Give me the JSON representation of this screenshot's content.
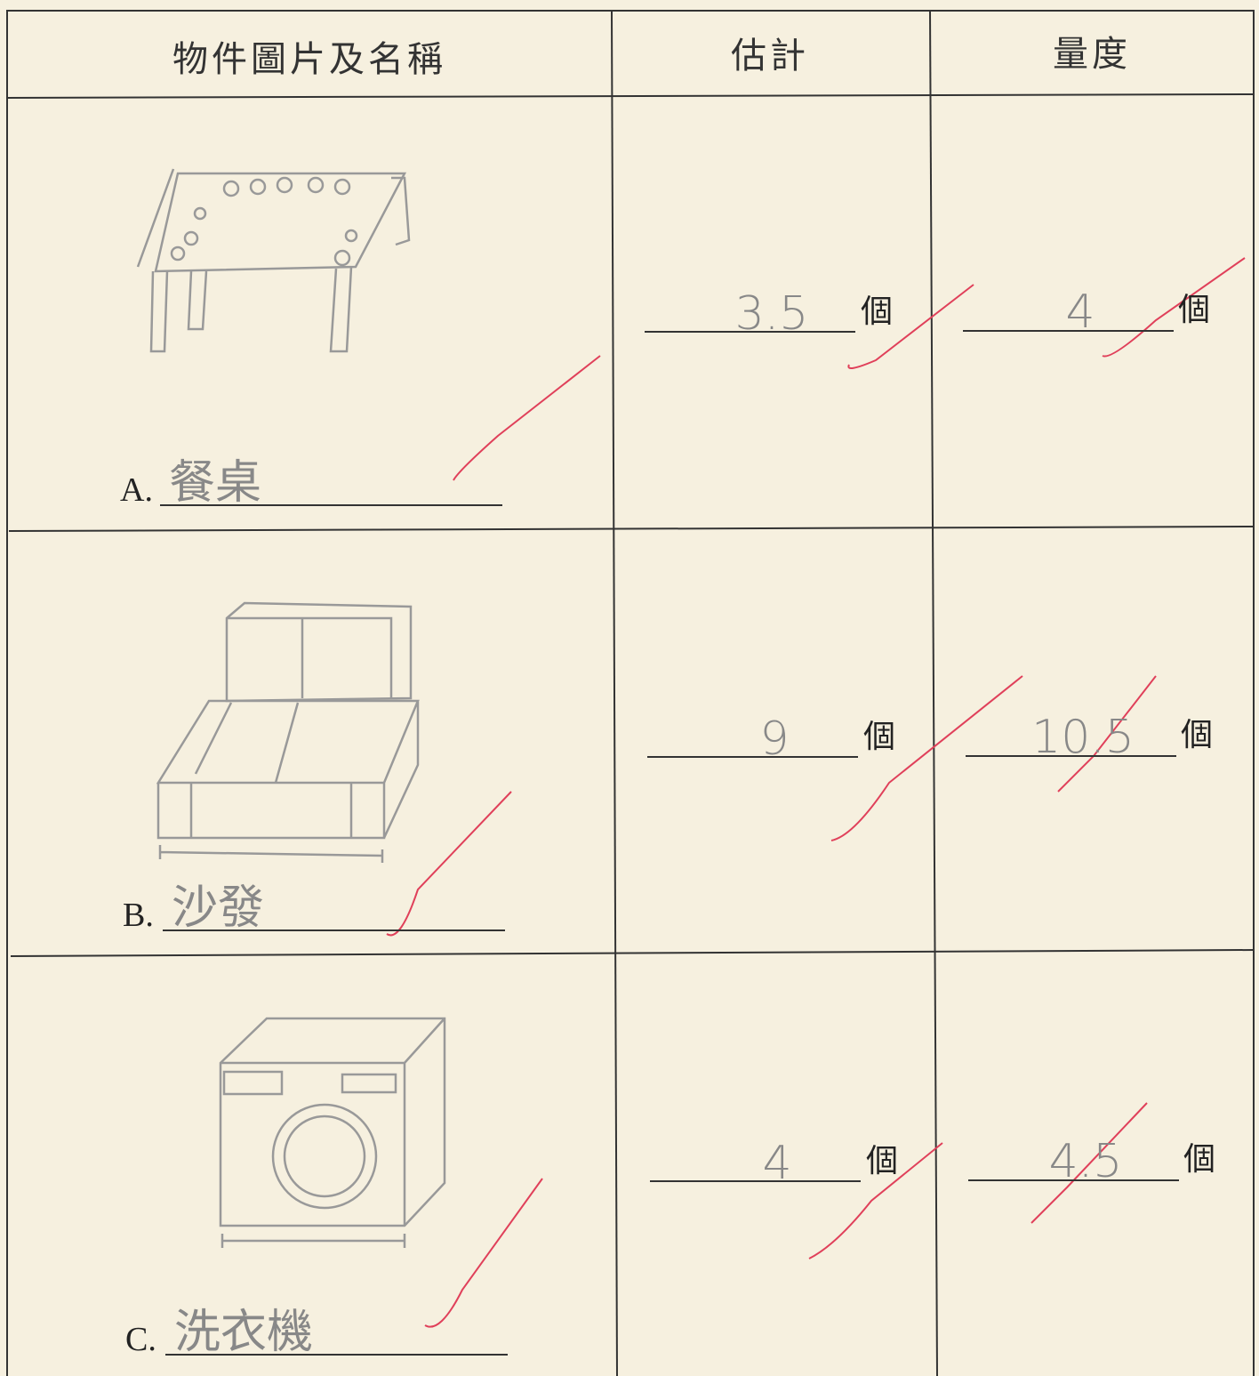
{
  "table": {
    "headers": [
      "物件圖片及名稱",
      "估計",
      "量度"
    ],
    "rows": [
      {
        "label": "A.",
        "name": "餐桌",
        "estimate": "3.5",
        "estimate_unit": "個",
        "measure": "4",
        "measure_unit": "個"
      },
      {
        "label": "B.",
        "name": "沙發",
        "estimate": "9",
        "estimate_unit": "個",
        "measure": "10.5",
        "measure_unit": "個"
      },
      {
        "label": "C.",
        "name": "洗衣機",
        "estimate": "4",
        "estimate_unit": "個",
        "measure": "4.5",
        "measure_unit": "個"
      }
    ]
  }
}
